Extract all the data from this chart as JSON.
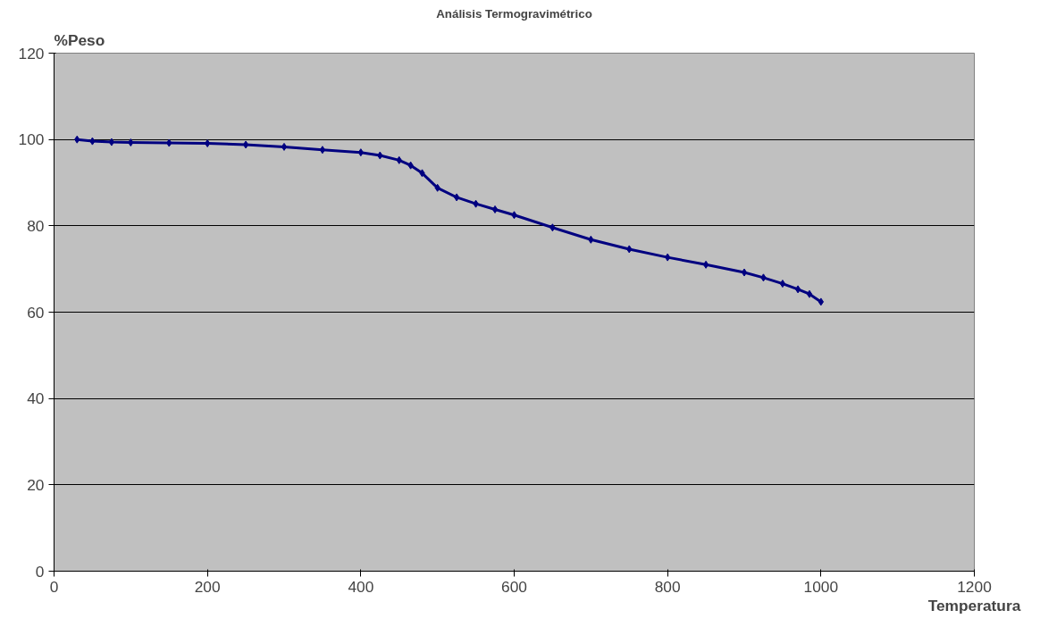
{
  "chart_data": {
    "type": "line",
    "title": "Análisis Termogravimétrico",
    "xlabel": "Temperatura",
    "ylabel": "%Peso",
    "series": [
      {
        "color": "#000080",
        "x": [
          30,
          50,
          75,
          100,
          150,
          200,
          250,
          300,
          350,
          400,
          425,
          450,
          465,
          480,
          500,
          525,
          550,
          575,
          600,
          650,
          700,
          750,
          800,
          850,
          900,
          925,
          950,
          970,
          985,
          1000
        ],
        "values": [
          100,
          99.6,
          99.4,
          99.3,
          99.2,
          99.1,
          98.8,
          98.3,
          97.6,
          97.0,
          96.3,
          95.2,
          94.0,
          92.2,
          88.8,
          86.6,
          85.1,
          83.8,
          82.5,
          79.6,
          76.8,
          74.6,
          72.7,
          71.0,
          69.2,
          68.0,
          66.6,
          65.3,
          64.2,
          62.4
        ]
      }
    ],
    "xlim": [
      0,
      1200
    ],
    "ylim": [
      0,
      120
    ],
    "xticks": [
      0,
      200,
      400,
      600,
      800,
      1000,
      1200
    ],
    "yticks": [
      0,
      20,
      40,
      60,
      80,
      100,
      120
    ],
    "grid": "y",
    "marker": "diamond",
    "line_style": "solid"
  }
}
